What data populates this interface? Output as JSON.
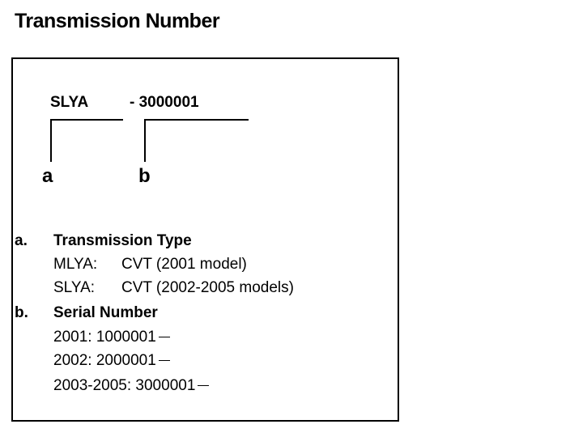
{
  "title": "Transmission Number",
  "code": {
    "type": "SLYA",
    "serial": "- 3000001"
  },
  "labels": {
    "a": "a",
    "b": "b"
  },
  "legend": {
    "a": {
      "key": "a.",
      "heading": "Transmission Type",
      "items": [
        {
          "code": "MLYA:",
          "desc": "CVT (2001 model)"
        },
        {
          "code": "SLYA:",
          "desc": "CVT (2002-2005 models)"
        }
      ]
    },
    "b": {
      "key": "b.",
      "heading": "Serial Number",
      "items": [
        "2001: 1000001",
        "2002: 2000001",
        "2003-2005: 3000001"
      ]
    }
  }
}
